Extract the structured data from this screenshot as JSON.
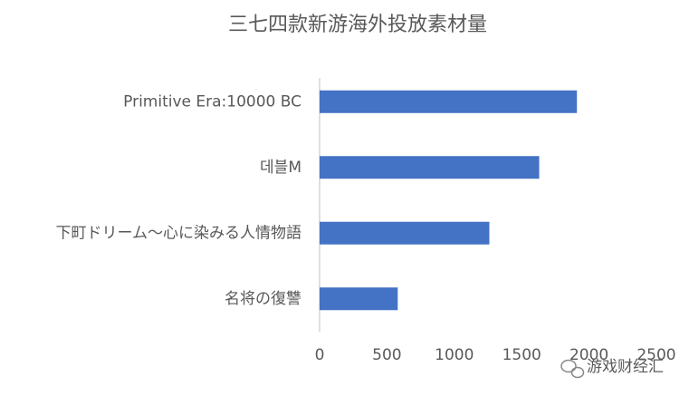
{
  "chart_data": {
    "type": "hbar",
    "title": "三七四款新游海外投放素材量",
    "categories": [
      "Primitive Era:10000 BC",
      "데블M",
      "下町ドリーム～心に染みる人情物語",
      "名将の復讐"
    ],
    "values": [
      1910,
      1630,
      1260,
      580
    ],
    "color": "#4472c4",
    "xlim": [
      0,
      2500
    ],
    "xticks": [
      0,
      500,
      1000,
      1500,
      2000,
      2500
    ],
    "grid": false
  },
  "watermark": "游戏财经汇"
}
